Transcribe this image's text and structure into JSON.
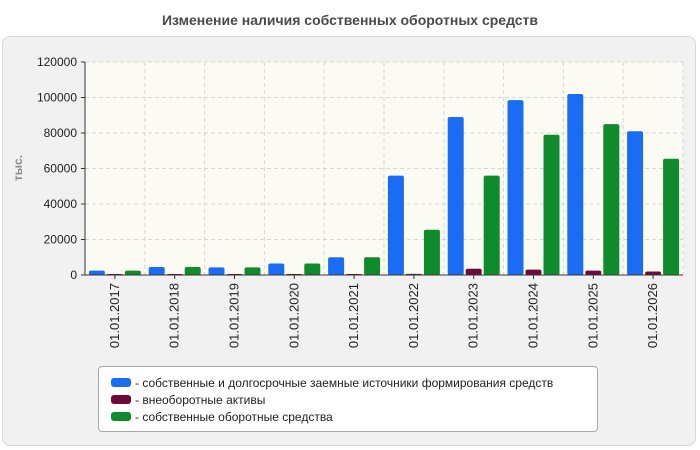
{
  "chart_data": {
    "type": "bar",
    "title": "Изменение наличия собственных оборотных средств",
    "ylabel": "тыс.",
    "xlabel": "",
    "ylim": [
      0,
      120000
    ],
    "yticks": [
      0,
      20000,
      40000,
      60000,
      80000,
      100000,
      120000
    ],
    "grid": true,
    "legend_position": "bottom",
    "categories": [
      "01.01.2017",
      "01.01.2018",
      "01.01.2019",
      "01.01.2020",
      "01.01.2021",
      "01.01.2022",
      "01.01.2023",
      "01.01.2024",
      "01.01.2025",
      "01.01.2026"
    ],
    "series": [
      {
        "name": "- собственные и долгосрочные заемные источники формирования средств",
        "color": "#1a6cf5",
        "values": [
          2500,
          4500,
          4300,
          6500,
          10000,
          56000,
          89000,
          98500,
          102000,
          81000
        ]
      },
      {
        "name": "- внеоборотные активы",
        "color": "#6b0a3a",
        "values": [
          300,
          400,
          300,
          400,
          400,
          600,
          3500,
          3000,
          2500,
          2000
        ]
      },
      {
        "name": "- собственные оборотные средства",
        "color": "#0f8a2c",
        "values": [
          2500,
          4500,
          4300,
          6500,
          10000,
          25500,
          56000,
          79000,
          85000,
          65500
        ]
      }
    ]
  }
}
